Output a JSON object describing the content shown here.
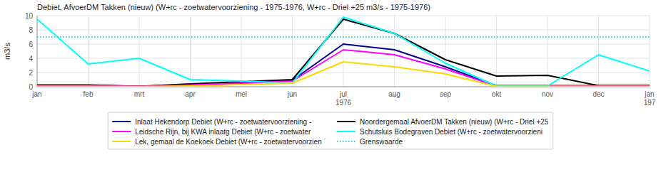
{
  "chart_data": {
    "type": "line",
    "title": "Debiet, AfvoerDM Takken (nieuw) (W+rc - zoetwatervoorziening - 1975-1976, W+rc - Driel +25 m3/s - 1975-1976)",
    "y_label": "m3/s",
    "categories": [
      "jan",
      "feb",
      "mrt",
      "apr",
      "mei",
      "jun",
      "jul\n1976",
      "aug",
      "sep",
      "okt",
      "nov",
      "dec",
      "jan\n197"
    ],
    "ylim": [
      0,
      10
    ],
    "yticks": [
      0,
      2,
      4,
      6,
      8,
      10
    ],
    "grid": true,
    "legend": "bottom",
    "series": [
      {
        "name": "Inlaat Hekendorp Debiet (W+rc - zoetwatervoorziening -",
        "color": "#00008B",
        "values": [
          0.2,
          0.2,
          0.05,
          0.3,
          0.5,
          0.9,
          6.0,
          5.2,
          2.8,
          0.15,
          0.15,
          0.15,
          0.15
        ]
      },
      {
        "name": "Noordergemaal AfvoerDM Takken (nieuw) (W+rc - Driel +25",
        "color": "#000000",
        "values": [
          0.25,
          0.25,
          0.05,
          0.4,
          0.7,
          1.0,
          9.5,
          7.5,
          3.8,
          1.5,
          1.6,
          0.15,
          0.15
        ]
      },
      {
        "name": "Leidsche Rijn, bij KWA inlaatg Debiet (W+rc - zoetwater",
        "color": "#FF00FF",
        "values": [
          0.15,
          0.15,
          0.05,
          0.25,
          0.5,
          0.8,
          5.2,
          4.5,
          2.5,
          0.1,
          0.1,
          0.1,
          0.1
        ]
      },
      {
        "name": "Schutsluis Bodegraven Debiet (W+rc - zoetwatervoorzieni",
        "color": "#00FFFF",
        "values": [
          9.5,
          3.2,
          4.0,
          1.0,
          0.8,
          0.5,
          9.8,
          7.5,
          3.3,
          0.1,
          0.1,
          4.5,
          2.2
        ]
      },
      {
        "name": "Lek, gemaal de Koekoek Debiet (W+rc - zoetwatervoorzien",
        "color": "#FFD700",
        "values": [
          0.05,
          0.05,
          0.02,
          0.1,
          0.3,
          0.5,
          3.5,
          2.8,
          1.8,
          0.05,
          0.05,
          0.05,
          0.05
        ]
      },
      {
        "name": "Grenswaarde",
        "color": "#00BBBB",
        "line_style": "dotted",
        "values": [
          7.0,
          7.0,
          7.0,
          7.0,
          7.0,
          7.0,
          7.0,
          7.0,
          7.0,
          7.0,
          7.0,
          7.0,
          7.0
        ]
      }
    ]
  }
}
